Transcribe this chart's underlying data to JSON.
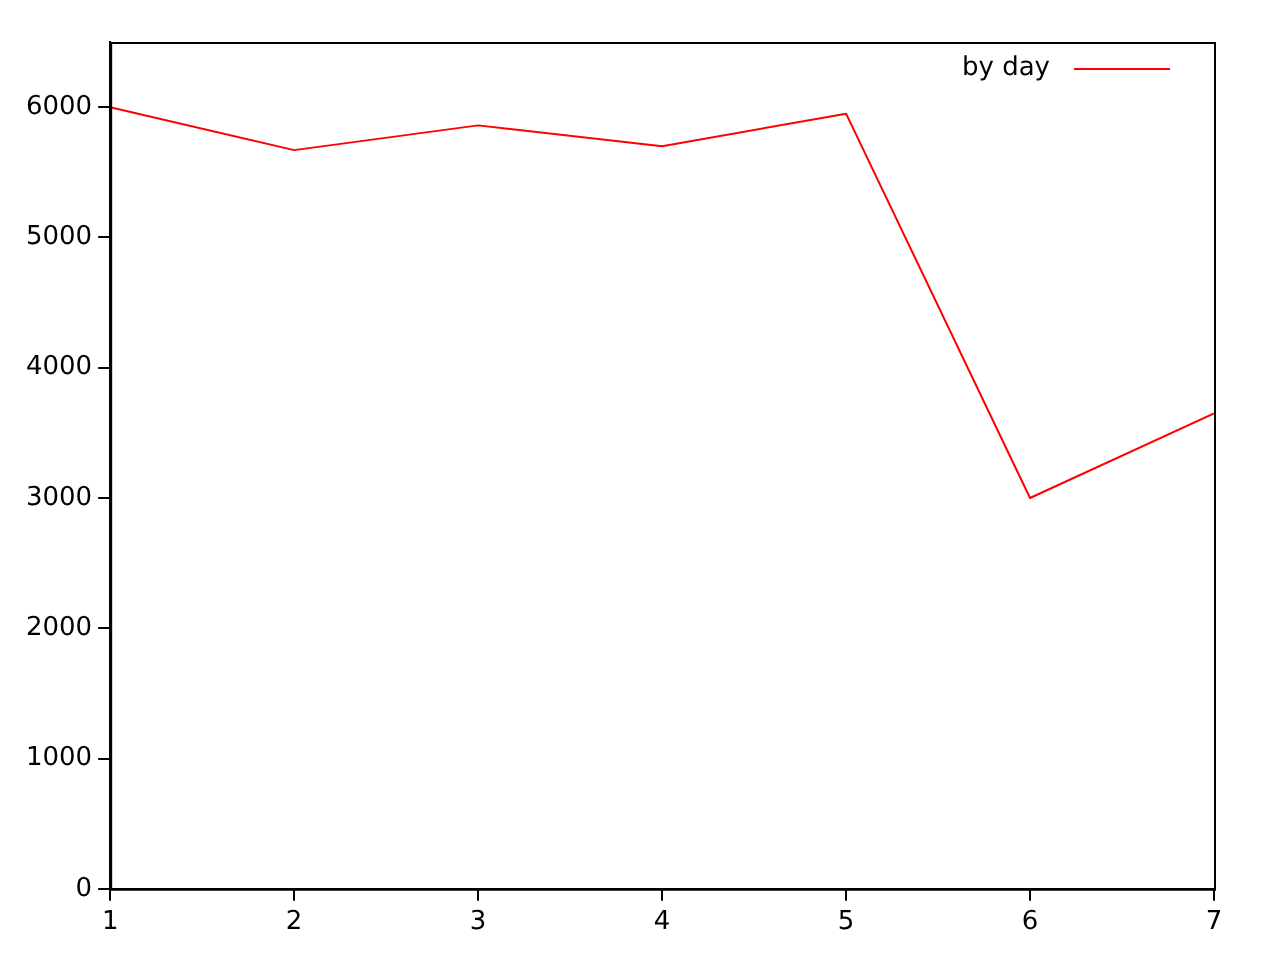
{
  "chart_data": {
    "type": "line",
    "x": [
      1,
      2,
      3,
      4,
      5,
      6,
      7
    ],
    "series": [
      {
        "name": "by day",
        "color": "#ff0000",
        "values": [
          6000,
          5670,
          5860,
          5700,
          5950,
          3000,
          3650
        ]
      }
    ],
    "xlim": [
      1,
      7
    ],
    "xticks": [
      1,
      2,
      3,
      4,
      5,
      6,
      7
    ],
    "ylim": [
      0,
      6500
    ],
    "yticks": [
      0,
      1000,
      2000,
      3000,
      4000,
      5000,
      6000
    ],
    "grid": false,
    "legend": "top right",
    "marker": "none",
    "line_style": "solid"
  }
}
